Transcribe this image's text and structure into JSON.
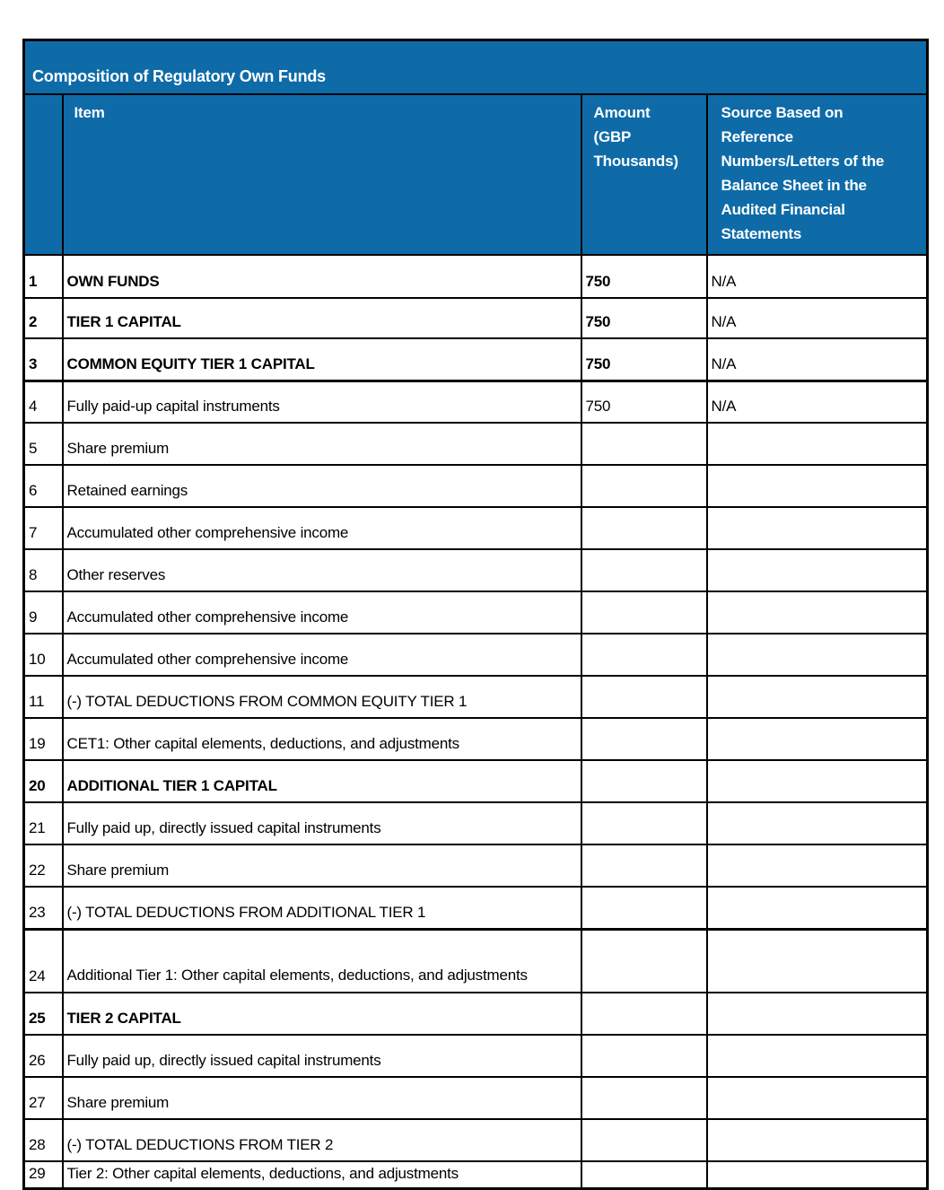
{
  "colors": {
    "header_bg": "#0E6BA8",
    "header_text": "#FFFFFF",
    "border": "#000000",
    "body_text": "#000000"
  },
  "table": {
    "title": "Composition of Regulatory Own Funds",
    "columns": {
      "item": "Item",
      "amount": "Amount (GBP Thousands)",
      "source": "Source Based on Reference Numbers/Letters of the Balance Sheet in the Audited Financial Statements"
    },
    "rows": [
      {
        "num": "1",
        "item": "OWN FUNDS",
        "amount": "750",
        "source": "N/A",
        "bold": true,
        "height": "r-h48"
      },
      {
        "num": "2",
        "item": "TIER 1 CAPITAL",
        "amount": "750",
        "source": "N/A",
        "bold": true,
        "height": "r-h45"
      },
      {
        "num": "3",
        "item": "COMMON EQUITY TIER 1 CAPITAL",
        "amount": "750",
        "source": "N/A",
        "bold": true,
        "thick_border_below": true
      },
      {
        "num": "4",
        "item": "Fully paid-up capital instruments",
        "amount": "750",
        "source": "N/A"
      },
      {
        "num": "5",
        "item": "Share premium"
      },
      {
        "num": "6",
        "item": "Retained earnings"
      },
      {
        "num": "7",
        "item": "Accumulated other comprehensive income"
      },
      {
        "num": "8",
        "item": "Other reserves"
      },
      {
        "num": "9",
        "item": "Accumulated other comprehensive income"
      },
      {
        "num": "10",
        "item": "Accumulated other comprehensive income"
      },
      {
        "num": "11",
        "item": "(-) TOTAL DEDUCTIONS FROM COMMON EQUITY TIER 1"
      },
      {
        "num": "19",
        "item": "CET1: Other capital elements, deductions, and adjustments"
      },
      {
        "num": "20",
        "item": "ADDITIONAL TIER 1 CAPITAL",
        "bold": true
      },
      {
        "num": "21",
        "item": "Fully paid up, directly issued capital instruments"
      },
      {
        "num": "22",
        "item": "Share premium"
      },
      {
        "num": "23",
        "item": "(-) TOTAL DEDUCTIONS FROM ADDITIONAL TIER 1",
        "thick_border_below": true
      },
      {
        "num": "24",
        "item": "Additional Tier 1: Other capital elements, deductions, and adjustments",
        "justify": true,
        "height": "r-tall"
      },
      {
        "num": "25",
        "item": "TIER 2 CAPITAL",
        "bold": true
      },
      {
        "num": "26",
        "item": "Fully paid up, directly issued capital instruments"
      },
      {
        "num": "27",
        "item": "Share premium"
      },
      {
        "num": "28",
        "item": "(-) TOTAL DEDUCTIONS FROM TIER 2"
      },
      {
        "num": "29",
        "item": "Tier 2: Other capital elements, deductions, and adjustments",
        "height": "r-short"
      }
    ]
  }
}
